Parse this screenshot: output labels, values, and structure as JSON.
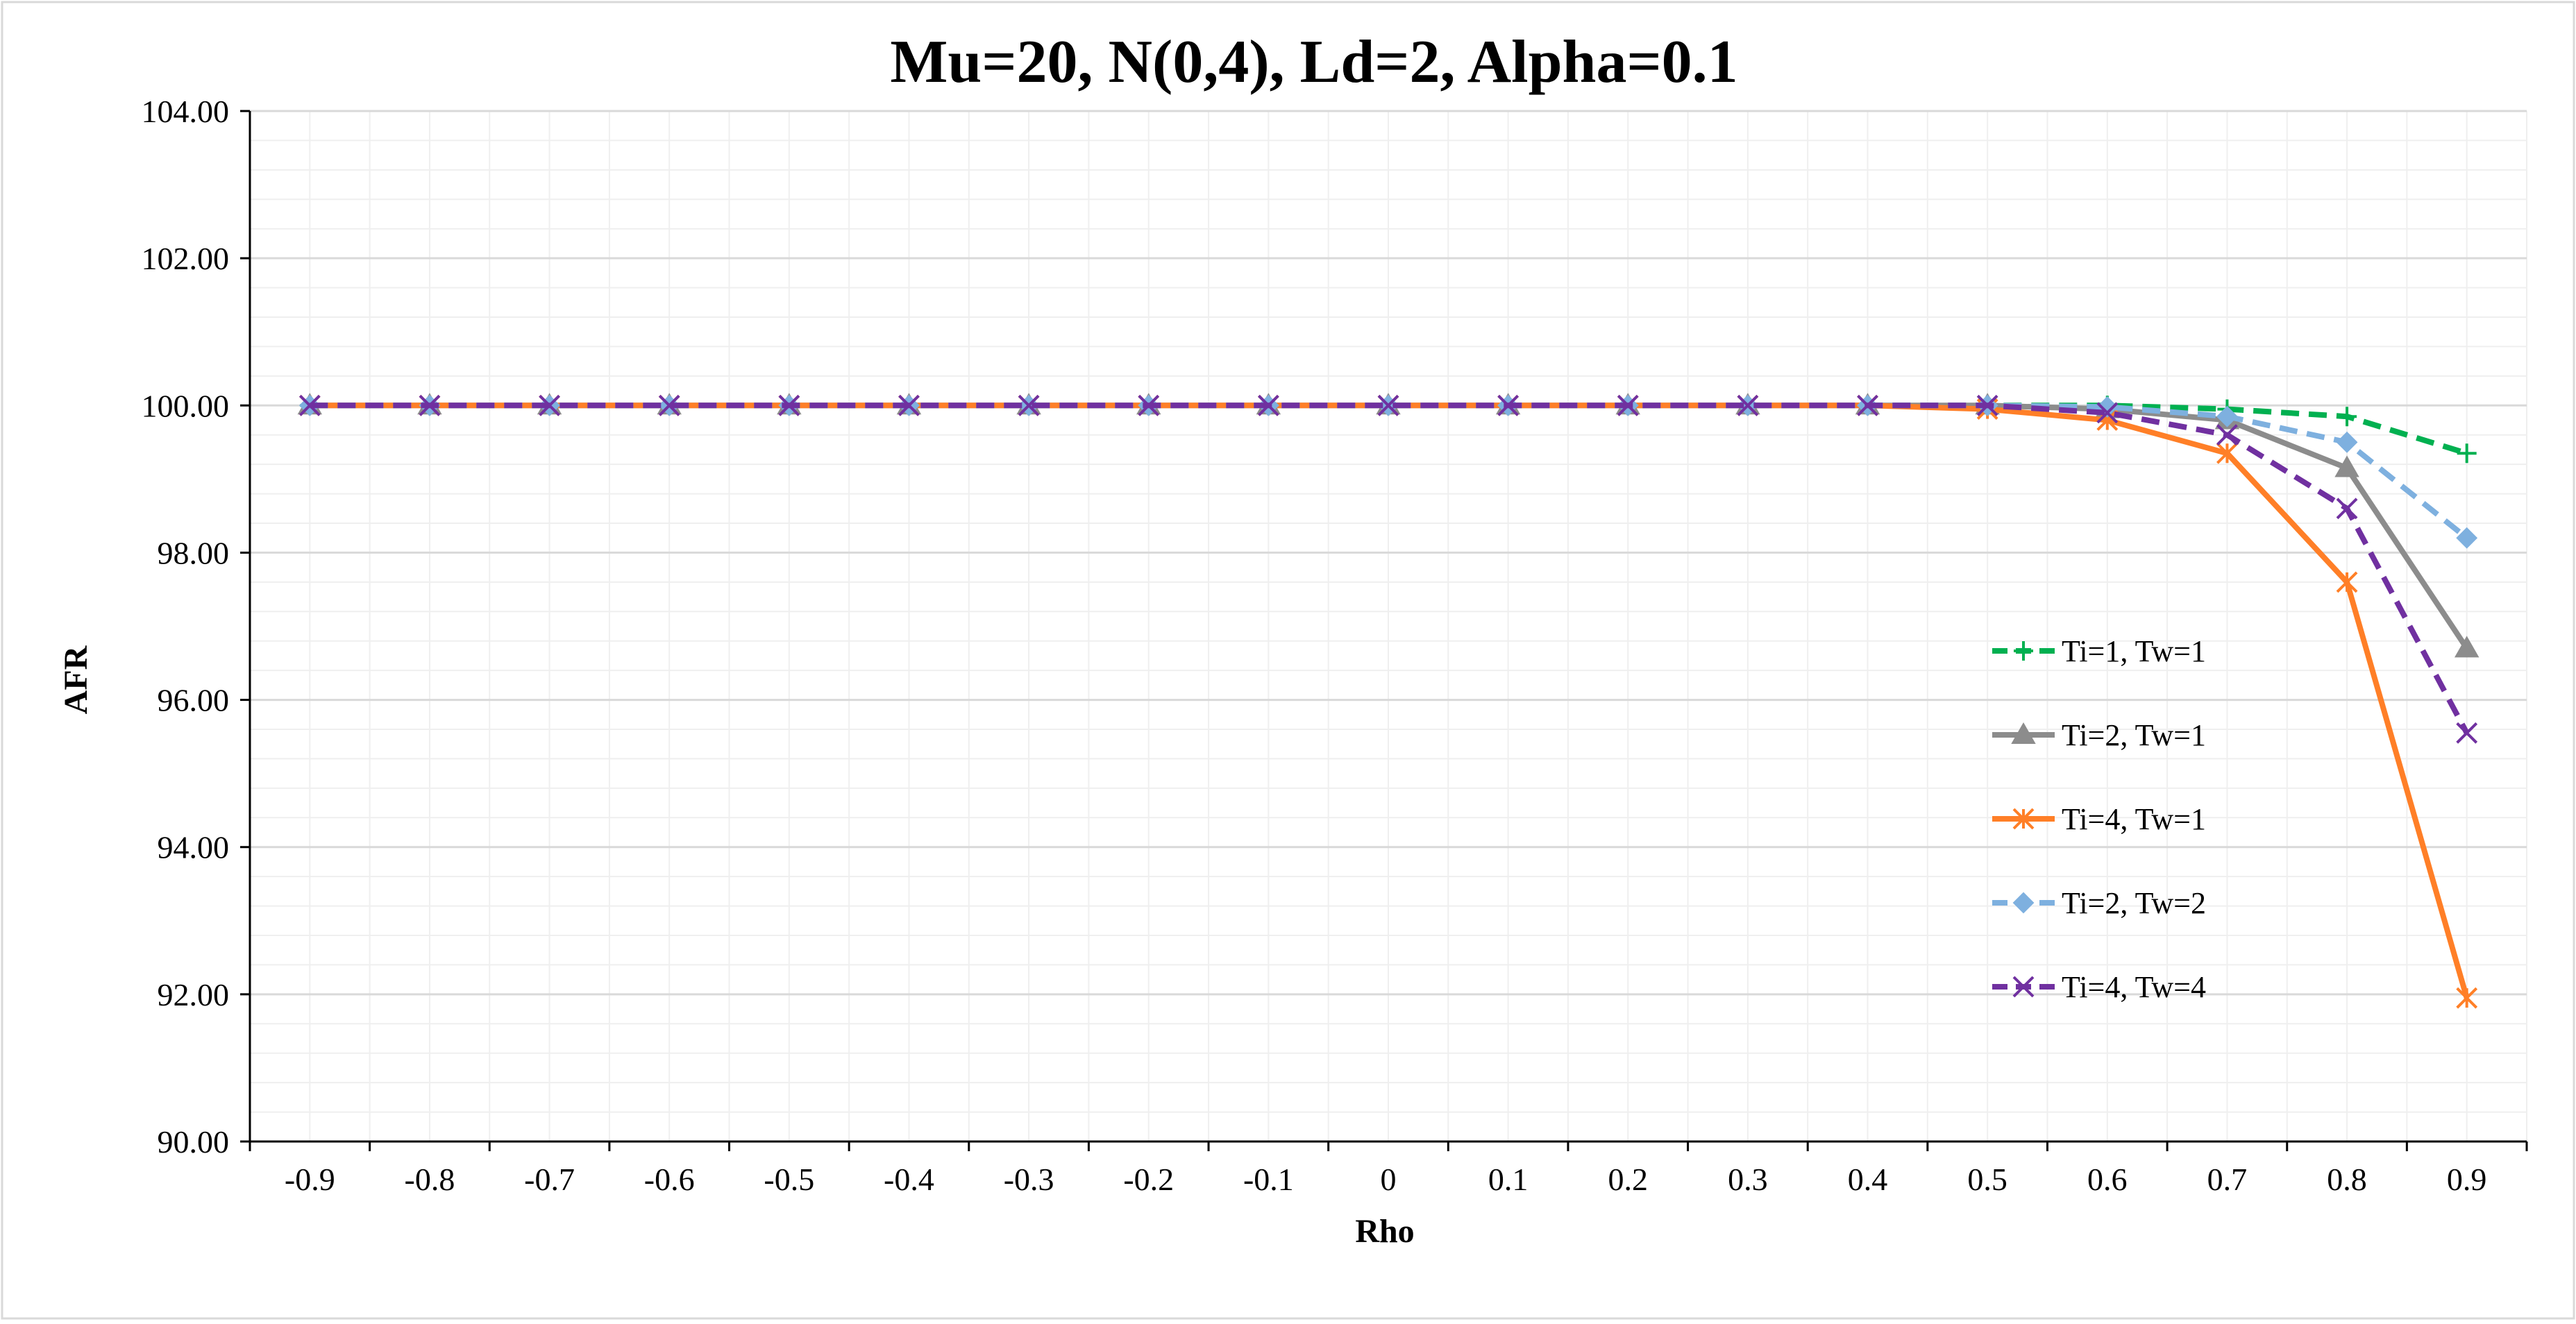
{
  "chart_data": {
    "type": "line",
    "title": "Mu=20, N(0,4), Ld=2, Alpha=0.1",
    "xlabel": "Rho",
    "ylabel": "AFR",
    "categories": [
      "-0.9",
      "-0.8",
      "-0.7",
      "-0.6",
      "-0.5",
      "-0.4",
      "-0.3",
      "-0.2",
      "-0.1",
      "0",
      "0.1",
      "0.2",
      "0.3",
      "0.4",
      "0.5",
      "0.6",
      "0.7",
      "0.8",
      "0.9"
    ],
    "ylim": [
      90,
      104
    ],
    "yticks": [
      "90.00",
      "92.00",
      "94.00",
      "96.00",
      "98.00",
      "100.00",
      "102.00",
      "104.00"
    ],
    "grid": true,
    "legend_position": "right",
    "series": [
      {
        "name": "Ti=1, Tw=1",
        "color": "#00b050",
        "dash": "dashed",
        "marker": "plus",
        "values": [
          100,
          100,
          100,
          100,
          100,
          100,
          100,
          100,
          100,
          100,
          100,
          100,
          100,
          100,
          100,
          100.0,
          99.95,
          99.85,
          99.35
        ]
      },
      {
        "name": "Ti=2, Tw=1",
        "color": "#8c8c8c",
        "dash": "solid",
        "marker": "triangle",
        "values": [
          100,
          100,
          100,
          100,
          100,
          100,
          100,
          100,
          100,
          100,
          100,
          100,
          100,
          100,
          100,
          99.95,
          99.8,
          99.15,
          96.7
        ]
      },
      {
        "name": "Ti=4, Tw=1",
        "color": "#ff7f27",
        "dash": "solid",
        "marker": "star",
        "values": [
          100,
          100,
          100,
          100,
          100,
          100,
          100,
          100,
          100,
          100,
          100,
          100,
          100,
          100,
          99.95,
          99.8,
          99.35,
          97.6,
          91.95
        ]
      },
      {
        "name": "Ti=2, Tw=2",
        "color": "#7eb0df",
        "dash": "dashed",
        "marker": "diamond",
        "values": [
          100,
          100,
          100,
          100,
          100,
          100,
          100,
          100,
          100,
          100,
          100,
          100,
          100,
          100,
          100,
          99.98,
          99.85,
          99.5,
          98.2
        ]
      },
      {
        "name": "Ti=4, Tw=4",
        "color": "#7030a0",
        "dash": "dashed",
        "marker": "x",
        "values": [
          100,
          100,
          100,
          100,
          100,
          100,
          100,
          100,
          100,
          100,
          100,
          100,
          100,
          100,
          100,
          99.9,
          99.6,
          98.6,
          95.55
        ]
      }
    ]
  }
}
